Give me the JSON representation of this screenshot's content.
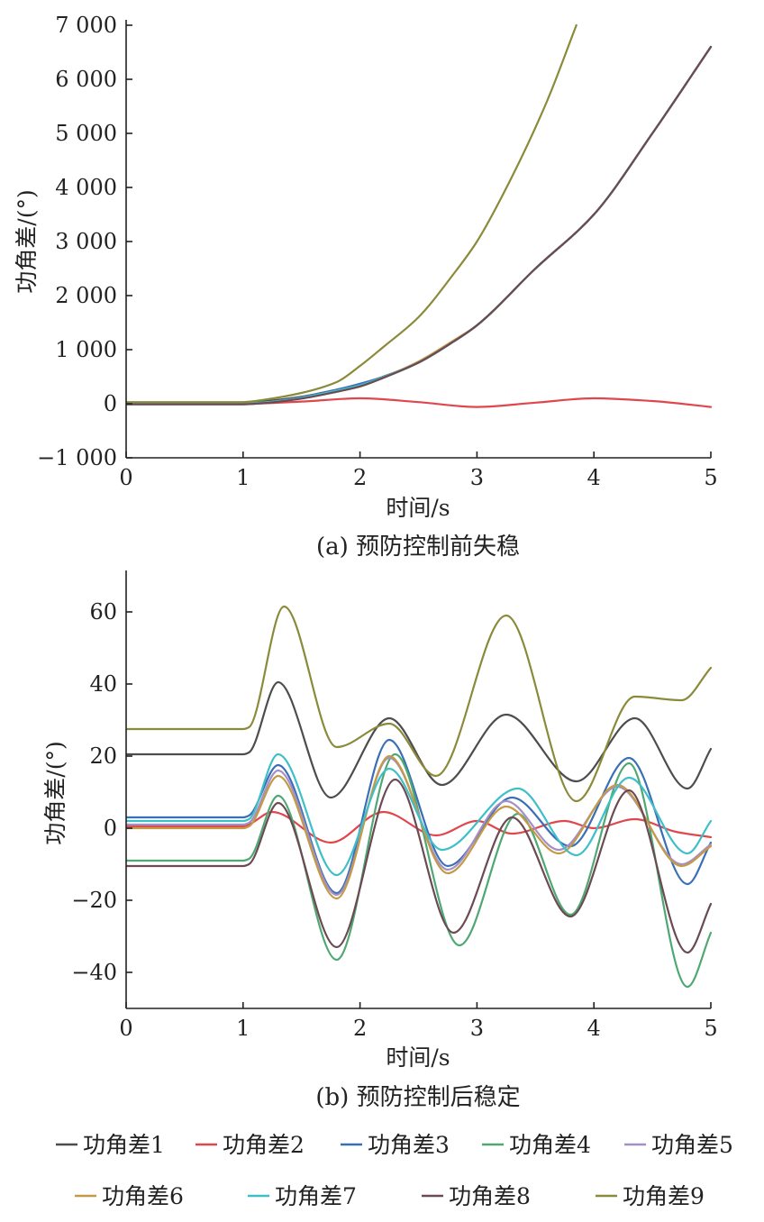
{
  "legend": {
    "items": [
      {
        "label": "功角差1",
        "color": "#4d4d4d"
      },
      {
        "label": "功角差2",
        "color": "#e0474c"
      },
      {
        "label": "功角差3",
        "color": "#3a6fb5"
      },
      {
        "label": "功角差4",
        "color": "#4fa873"
      },
      {
        "label": "功角差5",
        "color": "#a58fc7"
      },
      {
        "label": "功角差6",
        "color": "#c49a45"
      },
      {
        "label": "功角差7",
        "color": "#3fbfc7"
      },
      {
        "label": "功角差8",
        "color": "#6b4a52"
      },
      {
        "label": "功角差9",
        "color": "#8a8a3a"
      }
    ]
  },
  "chart_data": [
    {
      "type": "line",
      "caption": "(a) 预防控制前失稳",
      "xlabel": "时间/s",
      "ylabel": "功角差/(°)",
      "xlim": [
        0,
        5
      ],
      "ylim": [
        -1000,
        7000
      ],
      "xticks": [
        "0",
        "1",
        "2",
        "3",
        "4",
        "5"
      ],
      "yticks": [
        {
          "value": 7000,
          "label": "7 000"
        },
        {
          "value": 6000,
          "label": "6 000"
        },
        {
          "value": 5000,
          "label": "5 000"
        },
        {
          "value": 4000,
          "label": "4 000"
        },
        {
          "value": 3000,
          "label": "3 000"
        },
        {
          "value": 2000,
          "label": "2 000"
        },
        {
          "value": 1000,
          "label": "1 000"
        },
        {
          "value": 0,
          "label": "0"
        },
        {
          "value": -1000,
          "label": "−1 000"
        }
      ],
      "series": [
        {
          "name": "功角差1",
          "x": [
            0,
            1,
            1.2,
            1.5,
            1.8,
            2,
            2.2,
            2.5,
            2.8,
            3,
            3.5,
            4,
            4.5,
            5
          ],
          "y": [
            20,
            20,
            50,
            130,
            260,
            350,
            500,
            760,
            1150,
            1450,
            2500,
            3500,
            5000,
            6600
          ]
        },
        {
          "name": "功角差2",
          "x": [
            0,
            1,
            1.5,
            2,
            2.5,
            3,
            3.5,
            4,
            4.5,
            5
          ],
          "y": [
            0,
            0,
            40,
            100,
            30,
            -60,
            20,
            100,
            50,
            -60
          ]
        },
        {
          "name": "功角差3",
          "x": [
            0,
            1,
            1.2,
            1.5,
            1.8,
            2,
            2.2,
            2.5,
            2.8,
            3,
            3.5,
            4,
            4.5,
            5
          ],
          "y": [
            0,
            0,
            30,
            120,
            260,
            370,
            500,
            760,
            1150,
            1450,
            2500,
            3500,
            5000,
            6600
          ]
        },
        {
          "name": "功角差4",
          "x": [
            0,
            1,
            1.2,
            1.5,
            1.8,
            2,
            2.2,
            2.5,
            2.8,
            3,
            3.5,
            4,
            4.5,
            5
          ],
          "y": [
            -10,
            -10,
            20,
            100,
            230,
            320,
            480,
            760,
            1150,
            1450,
            2500,
            3500,
            5000,
            6600
          ]
        },
        {
          "name": "功角差5",
          "x": [
            0,
            1,
            1.2,
            1.5,
            1.8,
            2,
            2.2,
            2.5,
            2.8,
            3,
            3.5,
            4,
            4.5,
            5
          ],
          "y": [
            0,
            0,
            25,
            110,
            240,
            340,
            490,
            760,
            1150,
            1450,
            2500,
            3500,
            5000,
            6600
          ]
        },
        {
          "name": "功角差6",
          "x": [
            0,
            1,
            1.2,
            1.5,
            1.8,
            2,
            2.2,
            2.5,
            2.8,
            3,
            3.5,
            4,
            4.5,
            5
          ],
          "y": [
            0,
            0,
            25,
            100,
            230,
            330,
            490,
            780,
            1170,
            1450,
            2500,
            3500,
            5000,
            6600
          ]
        },
        {
          "name": "功角差7",
          "x": [
            0,
            1,
            1.2,
            1.5,
            1.8,
            2,
            2.2,
            2.5,
            2.8,
            3,
            3.5,
            4,
            4.5,
            5
          ],
          "y": [
            0,
            0,
            25,
            110,
            240,
            340,
            490,
            760,
            1150,
            1450,
            2500,
            3500,
            5000,
            6600
          ]
        },
        {
          "name": "功角差8",
          "x": [
            0,
            1,
            1.2,
            1.5,
            1.8,
            2,
            2.2,
            2.5,
            2.8,
            3,
            3.5,
            4,
            4.5,
            5
          ],
          "y": [
            -10,
            -10,
            15,
            95,
            220,
            320,
            480,
            760,
            1150,
            1450,
            2500,
            3500,
            5000,
            6600
          ]
        },
        {
          "name": "功角差9",
          "x": [
            0,
            1,
            1.2,
            1.5,
            1.8,
            2,
            2.2,
            2.5,
            2.8,
            3,
            3.3,
            3.6,
            3.85
          ],
          "y": [
            30,
            30,
            80,
            200,
            400,
            700,
            1050,
            1600,
            2400,
            3000,
            4200,
            5600,
            7000
          ]
        }
      ]
    },
    {
      "type": "line",
      "caption": "(b) 预防控制后稳定",
      "xlabel": "时间/s",
      "ylabel": "功角差/(°)",
      "xlim": [
        0,
        5
      ],
      "ylim": [
        -50,
        70
      ],
      "xticks": [
        "0",
        "1",
        "2",
        "3",
        "4",
        "5"
      ],
      "yticks": [
        {
          "value": 60,
          "label": "60"
        },
        {
          "value": 40,
          "label": "40"
        },
        {
          "value": 20,
          "label": "20"
        },
        {
          "value": 0,
          "label": "0"
        },
        {
          "value": -20,
          "label": "−20"
        },
        {
          "value": -40,
          "label": "−40"
        }
      ],
      "series": [
        {
          "name": "功角差1",
          "x": [
            0,
            1,
            1.05,
            1.3,
            1.75,
            2.25,
            2.7,
            3.25,
            3.85,
            4.35,
            4.8,
            5
          ],
          "y": [
            20.5,
            20.5,
            21,
            40.5,
            8.5,
            30.5,
            12,
            31.5,
            13,
            30.5,
            11,
            22
          ]
        },
        {
          "name": "功角差2",
          "x": [
            0,
            1,
            1.05,
            1.25,
            1.75,
            2.2,
            2.65,
            3.0,
            3.3,
            3.75,
            4.0,
            4.35,
            4.7,
            5
          ],
          "y": [
            0.5,
            0.5,
            1,
            4.5,
            -4,
            4.5,
            -2,
            2,
            -1.5,
            2,
            0,
            2.5,
            -1,
            -2.5
          ]
        },
        {
          "name": "功角差3",
          "x": [
            0,
            1,
            1.05,
            1.3,
            1.8,
            2.25,
            2.75,
            3.3,
            3.8,
            4.3,
            4.8,
            5
          ],
          "y": [
            3,
            3,
            3.5,
            17.5,
            -18,
            24.5,
            -10.5,
            8.5,
            -5,
            19.5,
            -15.5,
            -4
          ]
        },
        {
          "name": "功角差4",
          "x": [
            0,
            1,
            1.05,
            1.3,
            1.8,
            2.3,
            2.85,
            3.35,
            3.8,
            4.3,
            4.8,
            5
          ],
          "y": [
            -9,
            -9,
            -8.5,
            9,
            -36.5,
            20.5,
            -32.5,
            4,
            -24,
            18,
            -44,
            -29
          ]
        },
        {
          "name": "功角差5",
          "x": [
            0,
            1,
            1.05,
            1.3,
            1.8,
            2.25,
            2.75,
            3.25,
            3.7,
            4.2,
            4.75,
            5
          ],
          "y": [
            1,
            1,
            1.5,
            16,
            -18.5,
            19.5,
            -11.5,
            7.5,
            -6,
            11.5,
            -10,
            -4.5
          ]
        },
        {
          "name": "功角差6",
          "x": [
            0,
            1,
            1.05,
            1.3,
            1.8,
            2.25,
            2.75,
            3.25,
            3.7,
            4.2,
            4.75,
            5
          ],
          "y": [
            0,
            0,
            0.5,
            14.5,
            -19.5,
            20,
            -12.5,
            6,
            -7,
            12,
            -10.5,
            -5
          ]
        },
        {
          "name": "功角差7",
          "x": [
            0,
            1,
            1.05,
            1.3,
            1.8,
            2.25,
            2.7,
            3.35,
            3.85,
            4.3,
            4.8,
            5
          ],
          "y": [
            2,
            2,
            2.5,
            20.5,
            -13,
            16.5,
            -6,
            11,
            -7.5,
            14,
            -7,
            2
          ]
        },
        {
          "name": "功角差8",
          "x": [
            0,
            1,
            1.05,
            1.3,
            1.8,
            2.3,
            2.8,
            3.3,
            3.8,
            4.3,
            4.8,
            5
          ],
          "y": [
            -10.5,
            -10.5,
            -10,
            7,
            -33,
            13.5,
            -29,
            3,
            -24.5,
            10.5,
            -34.5,
            -21
          ]
        },
        {
          "name": "功角差9",
          "x": [
            0,
            1,
            1.05,
            1.35,
            1.8,
            2.25,
            2.65,
            3.25,
            3.85,
            4.35,
            4.75,
            5
          ],
          "y": [
            27.5,
            27.5,
            28,
            61.5,
            22.5,
            29,
            14.5,
            59,
            7.5,
            36.5,
            35.5,
            44.5
          ]
        }
      ]
    }
  ]
}
